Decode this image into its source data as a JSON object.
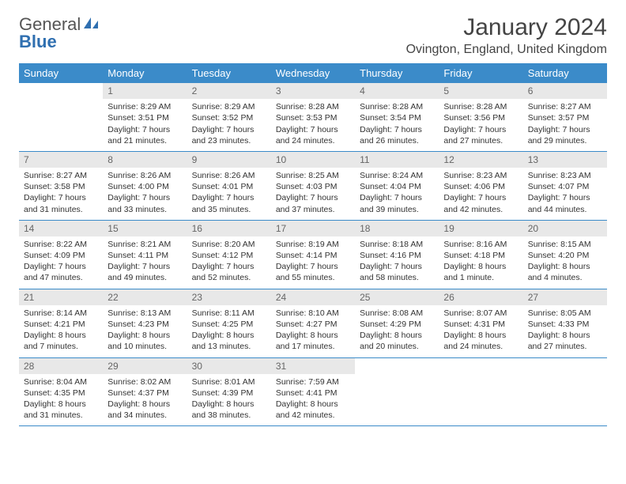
{
  "logo": {
    "text_general": "General",
    "text_blue": "Blue"
  },
  "title": "January 2024",
  "location": "Ovington, England, United Kingdom",
  "colors": {
    "header_bg": "#3b8bc9",
    "header_text": "#ffffff",
    "daynum_bg": "#e8e8e8",
    "daynum_text": "#666666",
    "border": "#3b8bc9",
    "body_text": "#333333",
    "logo_gray": "#555555",
    "logo_blue": "#2f6fb0"
  },
  "typography": {
    "title_fontsize": 30,
    "location_fontsize": 16,
    "dayheader_fontsize": 13,
    "daynum_fontsize": 12,
    "cell_fontsize": 10.5
  },
  "day_headers": [
    "Sunday",
    "Monday",
    "Tuesday",
    "Wednesday",
    "Thursday",
    "Friday",
    "Saturday"
  ],
  "weeks": [
    [
      {
        "empty": true
      },
      {
        "n": "1",
        "sr": "Sunrise: 8:29 AM",
        "ss": "Sunset: 3:51 PM",
        "d1": "Daylight: 7 hours",
        "d2": "and 21 minutes."
      },
      {
        "n": "2",
        "sr": "Sunrise: 8:29 AM",
        "ss": "Sunset: 3:52 PM",
        "d1": "Daylight: 7 hours",
        "d2": "and 23 minutes."
      },
      {
        "n": "3",
        "sr": "Sunrise: 8:28 AM",
        "ss": "Sunset: 3:53 PM",
        "d1": "Daylight: 7 hours",
        "d2": "and 24 minutes."
      },
      {
        "n": "4",
        "sr": "Sunrise: 8:28 AM",
        "ss": "Sunset: 3:54 PM",
        "d1": "Daylight: 7 hours",
        "d2": "and 26 minutes."
      },
      {
        "n": "5",
        "sr": "Sunrise: 8:28 AM",
        "ss": "Sunset: 3:56 PM",
        "d1": "Daylight: 7 hours",
        "d2": "and 27 minutes."
      },
      {
        "n": "6",
        "sr": "Sunrise: 8:27 AM",
        "ss": "Sunset: 3:57 PM",
        "d1": "Daylight: 7 hours",
        "d2": "and 29 minutes."
      }
    ],
    [
      {
        "n": "7",
        "sr": "Sunrise: 8:27 AM",
        "ss": "Sunset: 3:58 PM",
        "d1": "Daylight: 7 hours",
        "d2": "and 31 minutes."
      },
      {
        "n": "8",
        "sr": "Sunrise: 8:26 AM",
        "ss": "Sunset: 4:00 PM",
        "d1": "Daylight: 7 hours",
        "d2": "and 33 minutes."
      },
      {
        "n": "9",
        "sr": "Sunrise: 8:26 AM",
        "ss": "Sunset: 4:01 PM",
        "d1": "Daylight: 7 hours",
        "d2": "and 35 minutes."
      },
      {
        "n": "10",
        "sr": "Sunrise: 8:25 AM",
        "ss": "Sunset: 4:03 PM",
        "d1": "Daylight: 7 hours",
        "d2": "and 37 minutes."
      },
      {
        "n": "11",
        "sr": "Sunrise: 8:24 AM",
        "ss": "Sunset: 4:04 PM",
        "d1": "Daylight: 7 hours",
        "d2": "and 39 minutes."
      },
      {
        "n": "12",
        "sr": "Sunrise: 8:23 AM",
        "ss": "Sunset: 4:06 PM",
        "d1": "Daylight: 7 hours",
        "d2": "and 42 minutes."
      },
      {
        "n": "13",
        "sr": "Sunrise: 8:23 AM",
        "ss": "Sunset: 4:07 PM",
        "d1": "Daylight: 7 hours",
        "d2": "and 44 minutes."
      }
    ],
    [
      {
        "n": "14",
        "sr": "Sunrise: 8:22 AM",
        "ss": "Sunset: 4:09 PM",
        "d1": "Daylight: 7 hours",
        "d2": "and 47 minutes."
      },
      {
        "n": "15",
        "sr": "Sunrise: 8:21 AM",
        "ss": "Sunset: 4:11 PM",
        "d1": "Daylight: 7 hours",
        "d2": "and 49 minutes."
      },
      {
        "n": "16",
        "sr": "Sunrise: 8:20 AM",
        "ss": "Sunset: 4:12 PM",
        "d1": "Daylight: 7 hours",
        "d2": "and 52 minutes."
      },
      {
        "n": "17",
        "sr": "Sunrise: 8:19 AM",
        "ss": "Sunset: 4:14 PM",
        "d1": "Daylight: 7 hours",
        "d2": "and 55 minutes."
      },
      {
        "n": "18",
        "sr": "Sunrise: 8:18 AM",
        "ss": "Sunset: 4:16 PM",
        "d1": "Daylight: 7 hours",
        "d2": "and 58 minutes."
      },
      {
        "n": "19",
        "sr": "Sunrise: 8:16 AM",
        "ss": "Sunset: 4:18 PM",
        "d1": "Daylight: 8 hours",
        "d2": "and 1 minute."
      },
      {
        "n": "20",
        "sr": "Sunrise: 8:15 AM",
        "ss": "Sunset: 4:20 PM",
        "d1": "Daylight: 8 hours",
        "d2": "and 4 minutes."
      }
    ],
    [
      {
        "n": "21",
        "sr": "Sunrise: 8:14 AM",
        "ss": "Sunset: 4:21 PM",
        "d1": "Daylight: 8 hours",
        "d2": "and 7 minutes."
      },
      {
        "n": "22",
        "sr": "Sunrise: 8:13 AM",
        "ss": "Sunset: 4:23 PM",
        "d1": "Daylight: 8 hours",
        "d2": "and 10 minutes."
      },
      {
        "n": "23",
        "sr": "Sunrise: 8:11 AM",
        "ss": "Sunset: 4:25 PM",
        "d1": "Daylight: 8 hours",
        "d2": "and 13 minutes."
      },
      {
        "n": "24",
        "sr": "Sunrise: 8:10 AM",
        "ss": "Sunset: 4:27 PM",
        "d1": "Daylight: 8 hours",
        "d2": "and 17 minutes."
      },
      {
        "n": "25",
        "sr": "Sunrise: 8:08 AM",
        "ss": "Sunset: 4:29 PM",
        "d1": "Daylight: 8 hours",
        "d2": "and 20 minutes."
      },
      {
        "n": "26",
        "sr": "Sunrise: 8:07 AM",
        "ss": "Sunset: 4:31 PM",
        "d1": "Daylight: 8 hours",
        "d2": "and 24 minutes."
      },
      {
        "n": "27",
        "sr": "Sunrise: 8:05 AM",
        "ss": "Sunset: 4:33 PM",
        "d1": "Daylight: 8 hours",
        "d2": "and 27 minutes."
      }
    ],
    [
      {
        "n": "28",
        "sr": "Sunrise: 8:04 AM",
        "ss": "Sunset: 4:35 PM",
        "d1": "Daylight: 8 hours",
        "d2": "and 31 minutes."
      },
      {
        "n": "29",
        "sr": "Sunrise: 8:02 AM",
        "ss": "Sunset: 4:37 PM",
        "d1": "Daylight: 8 hours",
        "d2": "and 34 minutes."
      },
      {
        "n": "30",
        "sr": "Sunrise: 8:01 AM",
        "ss": "Sunset: 4:39 PM",
        "d1": "Daylight: 8 hours",
        "d2": "and 38 minutes."
      },
      {
        "n": "31",
        "sr": "Sunrise: 7:59 AM",
        "ss": "Sunset: 4:41 PM",
        "d1": "Daylight: 8 hours",
        "d2": "and 42 minutes."
      },
      {
        "empty": true
      },
      {
        "empty": true
      },
      {
        "empty": true
      }
    ]
  ]
}
